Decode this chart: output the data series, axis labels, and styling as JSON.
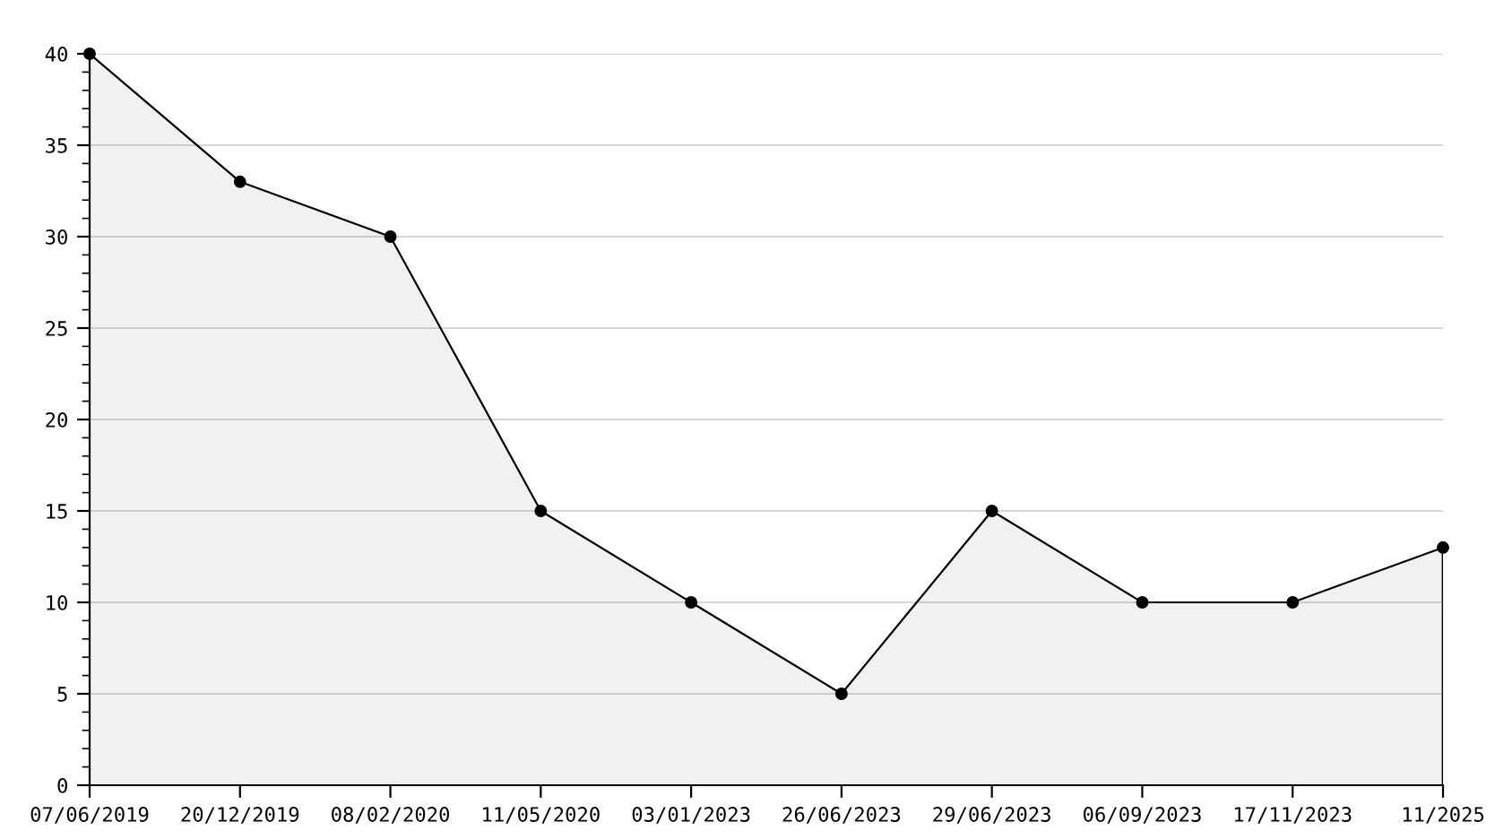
{
  "chart_data": {
    "type": "area",
    "categories": [
      "07/06/2019",
      "20/12/2019",
      "08/02/2020",
      "11/05/2020",
      "03/01/2023",
      "26/06/2023",
      "29/06/2023",
      "06/09/2023",
      "17/11/2023",
      "11/2025"
    ],
    "series": [
      {
        "color": "#000000",
        "values": [
          40,
          33,
          30,
          15,
          10,
          5,
          15,
          10,
          10,
          13
        ]
      }
    ],
    "ylim": [
      0,
      40
    ],
    "yticks": [
      0,
      5,
      10,
      15,
      20,
      25,
      30,
      35,
      40
    ],
    "grid": "y",
    "marker": "circle",
    "line_style": "solid",
    "legend": false
  }
}
